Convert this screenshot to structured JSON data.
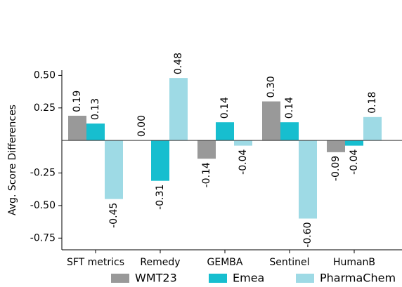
{
  "chart_data": {
    "type": "bar",
    "ylabel": "Avg. Score Differences",
    "categories": [
      "SFT metrics",
      "Remedy",
      "GEMBA",
      "Sentinel",
      "HumanB"
    ],
    "series": [
      {
        "name": "WMT23",
        "color": "#999999",
        "values": [
          0.19,
          0.0,
          -0.14,
          0.3,
          -0.09
        ],
        "value_labels": [
          "0.19",
          "0.00",
          "-0.14",
          "0.30",
          "-0.09"
        ]
      },
      {
        "name": "Emea",
        "color": "#17becf",
        "values": [
          0.13,
          -0.31,
          0.14,
          0.14,
          -0.04
        ],
        "value_labels": [
          "0.13",
          "-0.31",
          "0.14",
          "0.14",
          "-0.04"
        ]
      },
      {
        "name": "PharmaChem",
        "color": "#9edae5",
        "values": [
          -0.45,
          0.48,
          -0.04,
          -0.6,
          0.18
        ],
        "value_labels": [
          "-0.45",
          "0.48",
          "-0.04",
          "-0.60",
          "0.18"
        ]
      }
    ],
    "ylim": [
      -0.84,
      0.54
    ],
    "yticks": [
      {
        "value": 0.5,
        "label": "0.50"
      },
      0.25,
      -0.25,
      {
        "value": -0.5,
        "label": "-0.50"
      },
      -0.75
    ],
    "legend": "bottom"
  }
}
